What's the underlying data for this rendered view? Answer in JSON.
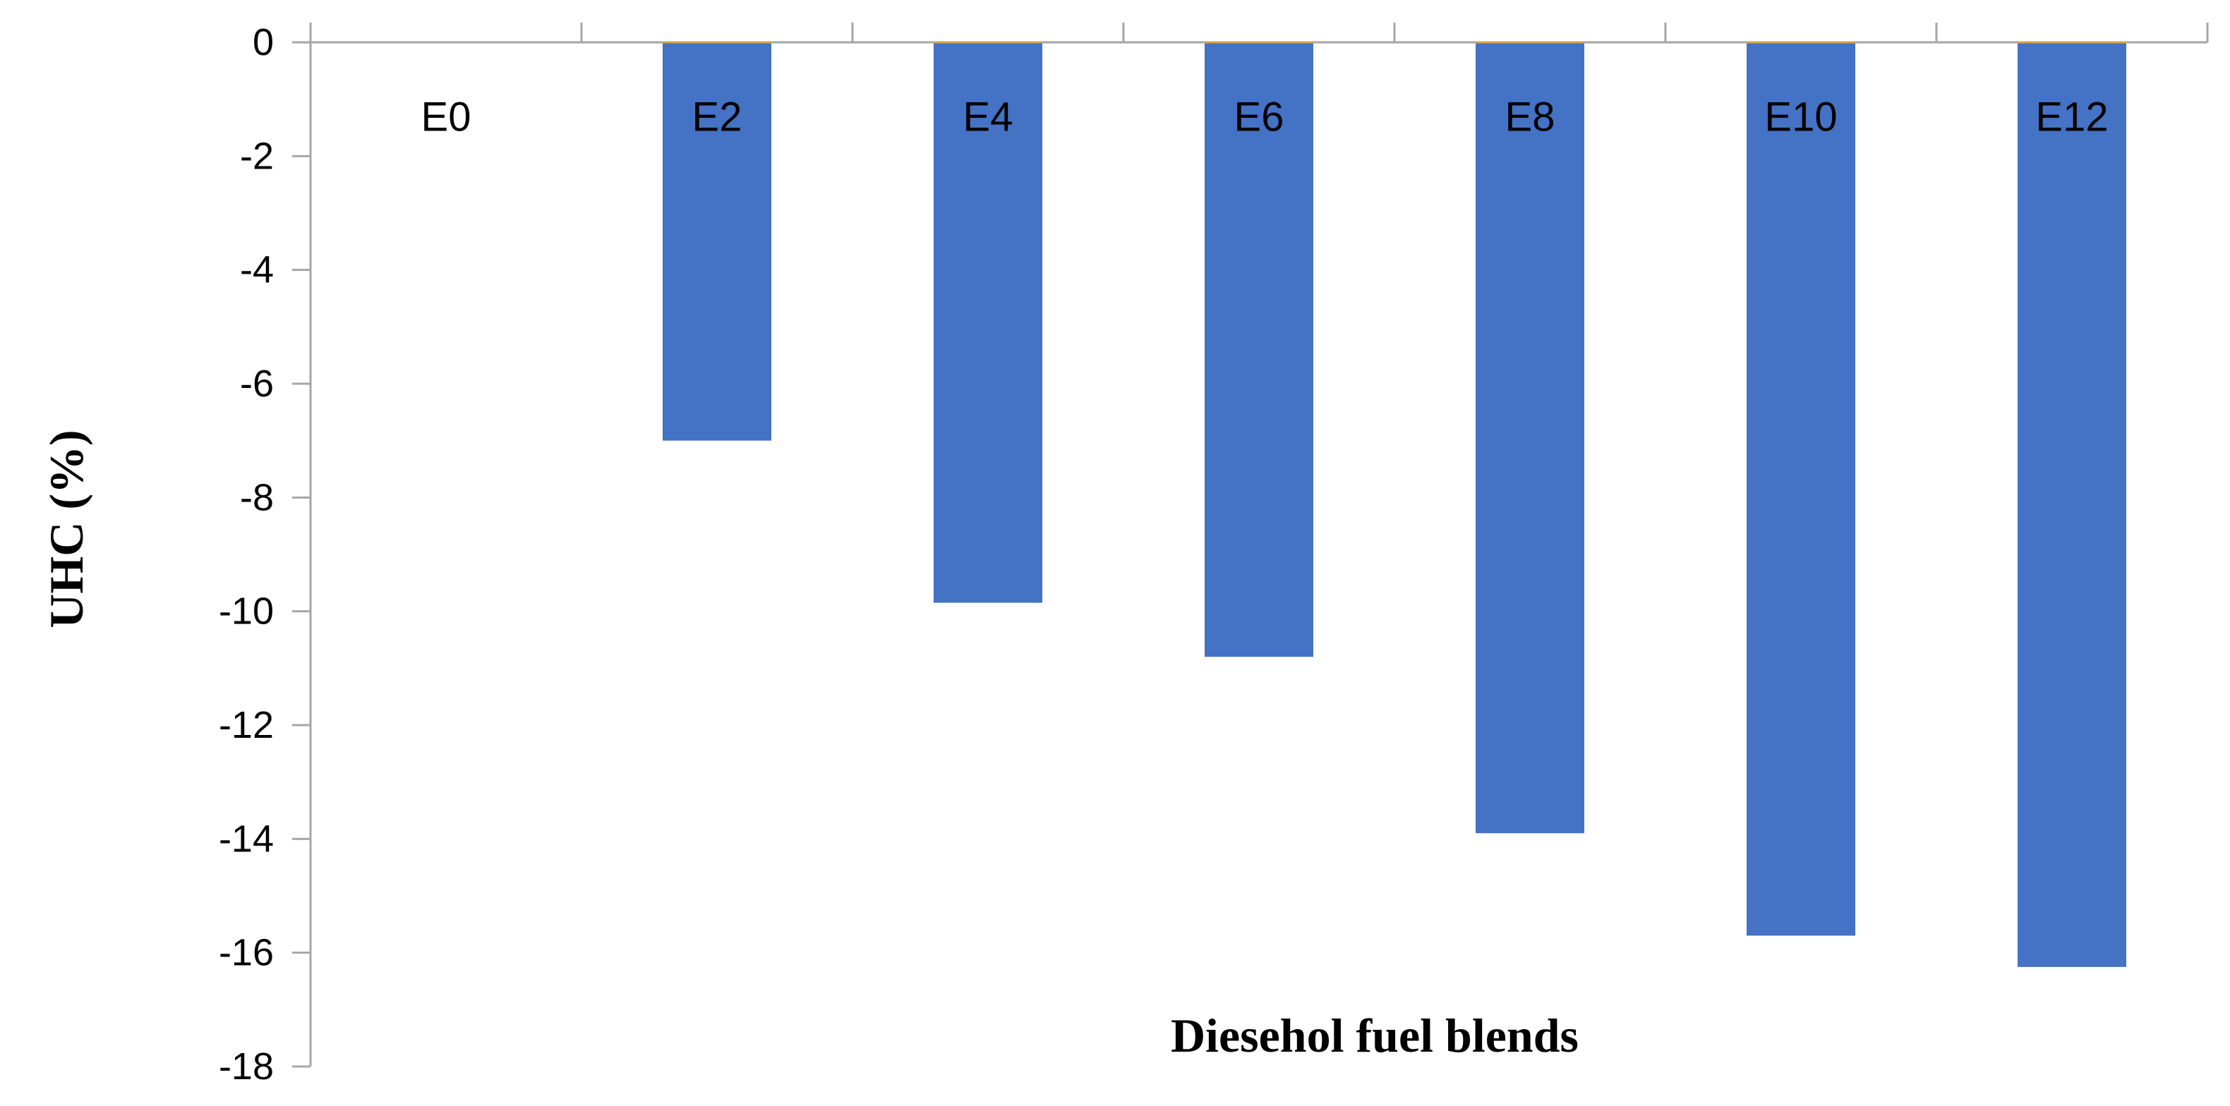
{
  "chart_data": {
    "type": "bar",
    "categories": [
      "E0",
      "E2",
      "E4",
      "E6",
      "E8",
      "E10",
      "E12"
    ],
    "values": [
      0,
      -7.0,
      -9.85,
      -10.8,
      -13.9,
      -15.7,
      -16.25
    ],
    "title": "",
    "xlabel": "Diesehol fuel blends",
    "ylabel": "UHC (%)",
    "ylim": [
      -18,
      0
    ],
    "yticks": [
      0,
      -2,
      -4,
      -6,
      -8,
      -10,
      -12,
      -14,
      -16,
      -18
    ],
    "colors": {
      "bar": "#4472C4",
      "axis": "#A6A6A6",
      "zero_line": "#D9A441"
    },
    "grid": false,
    "legend": "none"
  }
}
